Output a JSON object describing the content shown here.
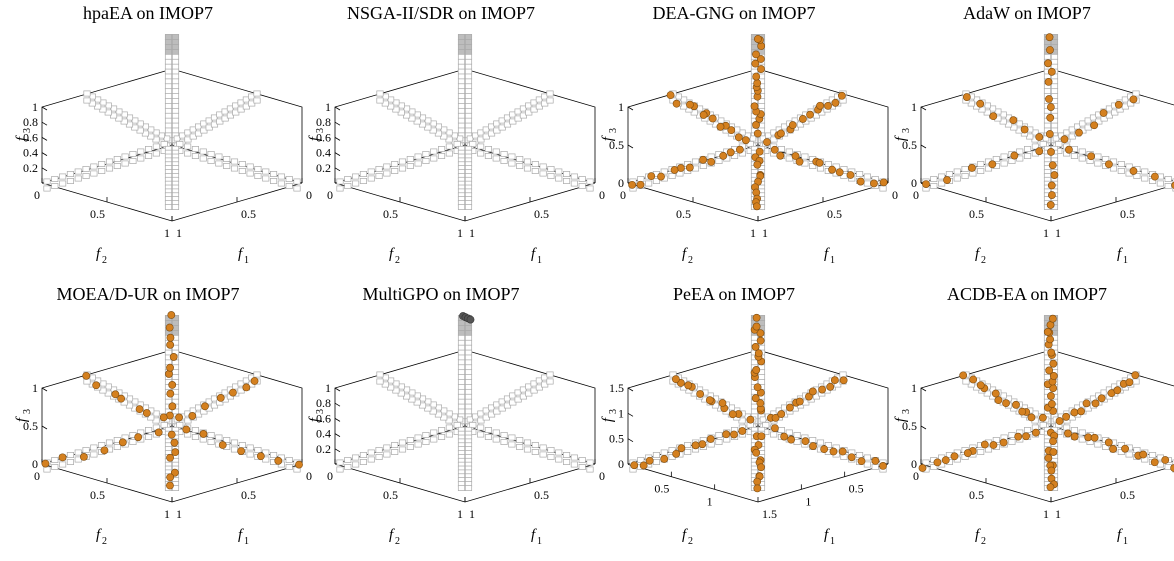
{
  "colors": {
    "pareto_front": "#c8c8c8",
    "solutions": "#d4801f",
    "solutions_multigpo": "#555555",
    "axes": "#000000"
  },
  "chart_data": [
    {
      "type": "scatter",
      "title": "hpaEA on IMOP7",
      "xlabel": "f",
      "xlabel_sub": "1",
      "ylabel": "f",
      "ylabel_sub": "2",
      "zlabel": "f",
      "zlabel_sub": "3",
      "xlim": [
        0,
        1
      ],
      "ylim": [
        0,
        1
      ],
      "zlim": [
        0,
        1
      ],
      "x_ticks": [
        "0",
        "0.5",
        "1"
      ],
      "y_ticks": [
        "0",
        "0.5",
        "1"
      ],
      "z_ticks": [
        "0.2",
        "0.4",
        "0.6",
        "0.8",
        "1"
      ],
      "series": [
        {
          "style": "overlap-pareto",
          "arms": []
        }
      ]
    },
    {
      "type": "scatter",
      "title": "NSGA-II/SDR on IMOP7",
      "xlabel": "f",
      "xlabel_sub": "1",
      "ylabel": "f",
      "ylabel_sub": "2",
      "zlabel": "f",
      "zlabel_sub": "3",
      "xlim": [
        0,
        1
      ],
      "ylim": [
        0,
        1
      ],
      "zlim": [
        0,
        1
      ],
      "x_ticks": [
        "0",
        "0.5",
        "1"
      ],
      "y_ticks": [
        "0",
        "0.5",
        "1"
      ],
      "z_ticks": [
        "0.2",
        "0.4",
        "0.6",
        "0.8",
        "1"
      ],
      "series": [
        {
          "style": "overlap-pareto",
          "arms": []
        }
      ]
    },
    {
      "type": "scatter",
      "title": "DEA-GNG on IMOP7",
      "xlabel": "f",
      "xlabel_sub": "1",
      "ylabel": "f",
      "ylabel_sub": "2",
      "zlabel": "f",
      "zlabel_sub": "3",
      "xlim": [
        0,
        1
      ],
      "ylim": [
        0,
        1
      ],
      "zlim": [
        0,
        1
      ],
      "x_ticks": [
        "0",
        "0.5",
        "1"
      ],
      "y_ticks": [
        "0",
        "0.5",
        "1"
      ],
      "z_ticks": [
        "0",
        "0.5",
        "1"
      ],
      "series": [
        {
          "style": "dots",
          "arms": [
            "up",
            "upleft",
            "upright",
            "left",
            "right",
            "down"
          ],
          "density": 1.0
        }
      ]
    },
    {
      "type": "scatter",
      "title": "AdaW on IMOP7",
      "xlabel": "f",
      "xlabel_sub": "1",
      "ylabel": "f",
      "ylabel_sub": "2",
      "zlabel": "f",
      "zlabel_sub": "3",
      "xlim": [
        0,
        1
      ],
      "ylim": [
        0,
        1
      ],
      "zlim": [
        0,
        1
      ],
      "x_ticks": [
        "0",
        "0.5",
        "1"
      ],
      "y_ticks": [
        "0",
        "0.5",
        "1"
      ],
      "z_ticks": [
        "0",
        "0.5",
        "1"
      ],
      "series": [
        {
          "style": "dots",
          "arms": [
            "up",
            "upleft",
            "upright",
            "left",
            "right",
            "down"
          ],
          "density": 0.5
        }
      ]
    },
    {
      "type": "scatter",
      "title": "MOEA/D-UR on IMOP7",
      "xlabel": "f",
      "xlabel_sub": "1",
      "ylabel": "f",
      "ylabel_sub": "2",
      "zlabel": "f",
      "zlabel_sub": "3",
      "xlim": [
        0,
        1
      ],
      "ylim": [
        0,
        1
      ],
      "zlim": [
        0,
        1
      ],
      "x_ticks": [
        "0",
        "0.5",
        "1"
      ],
      "y_ticks": [
        "0",
        "0.5",
        "1"
      ],
      "z_ticks": [
        "0",
        "0.5",
        "1"
      ],
      "series": [
        {
          "style": "dots",
          "arms": [
            "up",
            "upleft",
            "upright",
            "left",
            "right",
            "down"
          ],
          "density": 0.6
        }
      ]
    },
    {
      "type": "scatter",
      "title": "MultiGPO on IMOP7",
      "xlabel": "f",
      "xlabel_sub": "1",
      "ylabel": "f",
      "ylabel_sub": "2",
      "zlabel": "f",
      "zlabel_sub": "3",
      "xlim": [
        0,
        1
      ],
      "ylim": [
        0,
        1
      ],
      "zlim": [
        0,
        1
      ],
      "x_ticks": [
        "0",
        "0.5",
        "1"
      ],
      "y_ticks": [
        "0",
        "0.5",
        "1"
      ],
      "z_ticks": [
        "0.2",
        "0.4",
        "0.6",
        "0.8",
        "1"
      ],
      "series": [
        {
          "style": "top-cluster",
          "arms": []
        }
      ]
    },
    {
      "type": "scatter",
      "title": "PeEA on IMOP7",
      "xlabel": "f",
      "xlabel_sub": "1",
      "ylabel": "f",
      "ylabel_sub": "2",
      "zlabel": "f",
      "zlabel_sub": "3",
      "xlim": [
        0,
        1.5
      ],
      "ylim": [
        0,
        1.5
      ],
      "zlim": [
        0,
        1.5
      ],
      "x_ticks": [
        "0.5",
        "1",
        "1.5"
      ],
      "y_ticks": [
        "0.5",
        "1"
      ],
      "z_ticks": [
        "0",
        "0.5",
        "1",
        "1.5"
      ],
      "series": [
        {
          "style": "dots",
          "arms": [
            "up",
            "upleft",
            "upright",
            "left",
            "right",
            "down"
          ],
          "density": 1.0
        }
      ]
    },
    {
      "type": "scatter",
      "title": "ACDB-EA on IMOP7",
      "xlabel": "f",
      "xlabel_sub": "1",
      "ylabel": "f",
      "ylabel_sub": "2",
      "zlabel": "f",
      "zlabel_sub": "3",
      "xlim": [
        0,
        1
      ],
      "ylim": [
        0,
        1
      ],
      "zlim": [
        0,
        1
      ],
      "x_ticks": [
        "0",
        "0.5",
        "1"
      ],
      "y_ticks": [
        "0",
        "0.5",
        "1"
      ],
      "z_ticks": [
        "0",
        "0.5",
        "1"
      ],
      "series": [
        {
          "style": "dots",
          "arms": [
            "up",
            "upleft",
            "upright",
            "left",
            "right",
            "down"
          ],
          "density": 1.0
        }
      ]
    }
  ]
}
